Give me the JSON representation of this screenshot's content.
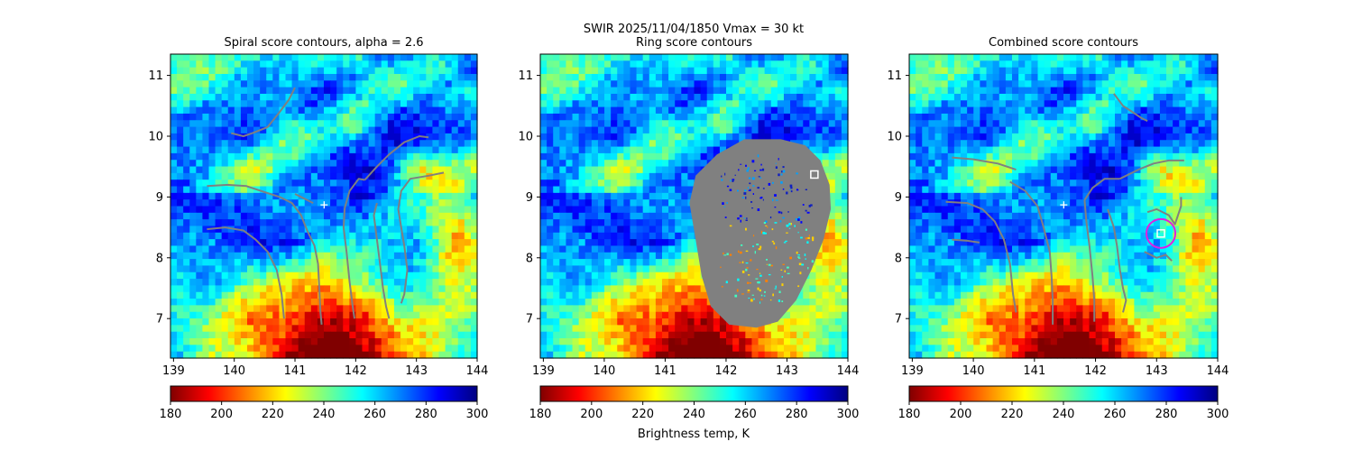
{
  "suptitle_line1": "SWIR  2025/11/04/1850    Vmax = 30 kt",
  "colorbar_label": "Brightness temp, K",
  "colormap_colors": [
    "#800000",
    "#ff0000",
    "#ff8000",
    "#ffff00",
    "#80ff80",
    "#00ffff",
    "#0080ff",
    "#0000ff",
    "#000080"
  ],
  "chart_data": [
    {
      "type": "heatmap",
      "title": "Spiral score contours, alpha =  2.6",
      "xlim": [
        138.95,
        144.0
      ],
      "ylim": [
        6.35,
        11.35
      ],
      "x_ticks": [
        "139",
        "140",
        "141",
        "142",
        "143",
        "144"
      ],
      "y_ticks": [
        "7",
        "8",
        "9",
        "10",
        "11"
      ],
      "colorbar": {
        "range": [
          180,
          300
        ],
        "ticks": [
          "180",
          "200",
          "220",
          "240",
          "260",
          "280",
          "300"
        ]
      },
      "markers": [
        {
          "symbol": "plus",
          "color": "#ffffff",
          "x": 141.48,
          "y": 8.87
        }
      ],
      "spiral_curves": [
        [
          [
            141.0,
            10.8
          ],
          [
            140.9,
            10.6
          ],
          [
            140.75,
            10.4
          ],
          [
            140.55,
            10.15
          ],
          [
            140.3,
            10.05
          ],
          [
            140.15,
            10.0
          ],
          [
            139.95,
            10.05
          ]
        ],
        [
          [
            139.55,
            9.18
          ],
          [
            139.9,
            9.2
          ],
          [
            140.2,
            9.18
          ],
          [
            140.5,
            9.08
          ],
          [
            140.75,
            9.0
          ],
          [
            140.95,
            8.9
          ],
          [
            141.1,
            8.7
          ],
          [
            141.2,
            8.45
          ],
          [
            141.32,
            8.2
          ],
          [
            141.38,
            7.9
          ],
          [
            141.4,
            7.5
          ],
          [
            141.42,
            7.1
          ],
          [
            141.44,
            6.9
          ]
        ],
        [
          [
            139.55,
            8.47
          ],
          [
            139.85,
            8.5
          ],
          [
            140.15,
            8.45
          ],
          [
            140.35,
            8.3
          ],
          [
            140.55,
            8.1
          ],
          [
            140.7,
            7.8
          ],
          [
            140.78,
            7.4
          ],
          [
            140.82,
            7.0
          ]
        ],
        [
          [
            141.0,
            9.05
          ],
          [
            141.3,
            8.9
          ]
        ],
        [
          [
            141.82,
            8.82
          ],
          [
            141.8,
            8.5
          ],
          [
            141.85,
            8.1
          ],
          [
            141.9,
            7.6
          ],
          [
            141.95,
            7.2
          ],
          [
            141.98,
            7.0
          ]
        ],
        [
          [
            142.15,
            9.28
          ],
          [
            142.35,
            9.5
          ],
          [
            142.55,
            9.7
          ],
          [
            142.8,
            9.9
          ],
          [
            143.05,
            10.0
          ],
          [
            143.2,
            9.98
          ]
        ],
        [
          [
            141.82,
            8.82
          ],
          [
            141.9,
            9.1
          ],
          [
            142.05,
            9.3
          ],
          [
            142.15,
            9.28
          ]
        ],
        [
          [
            143.45,
            9.4
          ],
          [
            143.2,
            9.35
          ],
          [
            142.9,
            9.3
          ],
          [
            142.75,
            9.1
          ],
          [
            142.7,
            8.8
          ],
          [
            142.75,
            8.5
          ],
          [
            142.8,
            8.2
          ],
          [
            142.85,
            7.8
          ],
          [
            142.8,
            7.4
          ],
          [
            142.75,
            7.25
          ]
        ],
        [
          [
            142.35,
            8.9
          ],
          [
            142.3,
            8.7
          ],
          [
            142.35,
            8.3
          ],
          [
            142.4,
            7.9
          ],
          [
            142.45,
            7.5
          ],
          [
            142.5,
            7.2
          ],
          [
            142.55,
            7.0
          ]
        ]
      ]
    },
    {
      "type": "heatmap",
      "title": "Ring score contours",
      "xlim": [
        138.95,
        144.0
      ],
      "ylim": [
        6.35,
        11.35
      ],
      "x_ticks": [
        "139",
        "140",
        "141",
        "142",
        "143",
        "144"
      ],
      "y_ticks": [
        "7",
        "8",
        "9",
        "10",
        "11"
      ],
      "colorbar": {
        "range": [
          180,
          300
        ],
        "ticks": [
          "180",
          "200",
          "220",
          "240",
          "260",
          "280",
          "300"
        ]
      },
      "markers": [
        {
          "symbol": "square",
          "color": "#ffffff",
          "x": 143.45,
          "y": 9.37
        }
      ],
      "ring_region": [
        [
          142.3,
          9.95
        ],
        [
          142.9,
          9.95
        ],
        [
          143.3,
          9.85
        ],
        [
          143.55,
          9.6
        ],
        [
          143.7,
          9.2
        ],
        [
          143.72,
          8.8
        ],
        [
          143.6,
          8.3
        ],
        [
          143.4,
          7.8
        ],
        [
          143.15,
          7.3
        ],
        [
          142.85,
          6.95
        ],
        [
          142.5,
          6.85
        ],
        [
          142.05,
          6.9
        ],
        [
          141.75,
          7.2
        ],
        [
          141.6,
          7.7
        ],
        [
          141.5,
          8.3
        ],
        [
          141.4,
          8.9
        ],
        [
          141.5,
          9.35
        ],
        [
          141.85,
          9.7
        ]
      ]
    },
    {
      "type": "heatmap",
      "title": "Combined score contours",
      "xlim": [
        138.95,
        144.0
      ],
      "ylim": [
        6.35,
        11.35
      ],
      "x_ticks": [
        "139",
        "140",
        "141",
        "142",
        "143",
        "144"
      ],
      "y_ticks": [
        "7",
        "8",
        "9",
        "10",
        "11"
      ],
      "colorbar": {
        "range": [
          180,
          300
        ],
        "ticks": [
          "180",
          "200",
          "220",
          "240",
          "260",
          "280",
          "300"
        ]
      },
      "markers": [
        {
          "symbol": "plus",
          "color": "#ffffff",
          "x": 141.48,
          "y": 8.87
        },
        {
          "symbol": "square",
          "color": "#ffffff",
          "x": 143.07,
          "y": 8.4
        },
        {
          "symbol": "circle",
          "color": "#e020e0",
          "x": 143.07,
          "y": 8.4
        }
      ],
      "spiral_curves": [
        [
          [
            142.3,
            10.7
          ],
          [
            142.45,
            10.5
          ],
          [
            142.6,
            10.4
          ],
          [
            142.75,
            10.3
          ],
          [
            142.85,
            10.25
          ]
        ],
        [
          [
            139.65,
            9.65
          ],
          [
            140.0,
            9.62
          ],
          [
            140.4,
            9.55
          ],
          [
            140.7,
            9.45
          ]
        ],
        [
          [
            139.55,
            8.92
          ],
          [
            139.9,
            8.9
          ],
          [
            140.15,
            8.8
          ],
          [
            140.35,
            8.6
          ],
          [
            140.5,
            8.3
          ],
          [
            140.6,
            7.9
          ],
          [
            140.65,
            7.4
          ],
          [
            140.7,
            7.1
          ]
        ],
        [
          [
            140.6,
            9.25
          ],
          [
            140.85,
            9.1
          ],
          [
            141.05,
            8.85
          ],
          [
            141.15,
            8.5
          ],
          [
            141.25,
            8.1
          ],
          [
            141.28,
            7.7
          ],
          [
            141.3,
            7.3
          ],
          [
            141.3,
            6.9
          ]
        ],
        [
          [
            139.65,
            8.3
          ],
          [
            139.9,
            8.28
          ],
          [
            140.1,
            8.25
          ]
        ],
        [
          [
            141.82,
            8.95
          ],
          [
            141.85,
            8.6
          ],
          [
            141.9,
            8.2
          ],
          [
            141.95,
            7.7
          ],
          [
            141.98,
            7.3
          ],
          [
            141.98,
            6.95
          ]
        ],
        [
          [
            142.4,
            9.3
          ],
          [
            142.7,
            9.45
          ],
          [
            142.95,
            9.55
          ],
          [
            143.2,
            9.6
          ],
          [
            143.45,
            9.6
          ]
        ],
        [
          [
            142.2,
            8.8
          ],
          [
            142.3,
            8.5
          ],
          [
            142.35,
            8.2
          ],
          [
            142.4,
            7.8
          ],
          [
            142.45,
            7.5
          ],
          [
            142.5,
            7.3
          ],
          [
            142.45,
            7.1
          ]
        ],
        [
          [
            141.82,
            8.95
          ],
          [
            141.95,
            9.15
          ],
          [
            142.15,
            9.3
          ],
          [
            142.4,
            9.3
          ]
        ],
        [
          [
            142.85,
            8.75
          ],
          [
            143.0,
            8.8
          ],
          [
            143.2,
            8.7
          ],
          [
            143.3,
            8.55
          ],
          [
            143.4,
            8.85
          ],
          [
            143.4,
            9.0
          ]
        ],
        [
          [
            142.8,
            8.1
          ],
          [
            143.0,
            8.0
          ],
          [
            143.15,
            8.05
          ],
          [
            143.25,
            7.95
          ]
        ]
      ]
    }
  ]
}
